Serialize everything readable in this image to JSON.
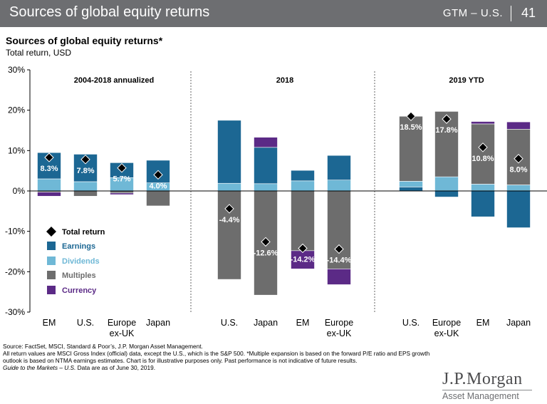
{
  "header": {
    "title": "Sources of global equity returns",
    "gtm": "GTM – U.S.",
    "page_number": "41"
  },
  "chart_title": "Sources of global equity returns*",
  "chart_subtitle": "Total return, USD",
  "chart_data": {
    "type": "bar",
    "stacked": true,
    "title": "Sources of global equity returns*",
    "ylabel": "Total return, USD",
    "ylim": [
      -30,
      30
    ],
    "yticks": [
      "30%",
      "20%",
      "10%",
      "0%",
      "-10%",
      "-20%",
      "-30%"
    ],
    "grid": false,
    "legend_position": "bottom-left",
    "legend": [
      {
        "key": "total",
        "label": "Total return",
        "color": "#000000"
      },
      {
        "key": "earnings",
        "label": "Earnings",
        "color": "#1c6793"
      },
      {
        "key": "dividends",
        "label": "Dividends",
        "color": "#6fb8d6"
      },
      {
        "key": "multiples",
        "label": "Multiples",
        "color": "#6d6d6d"
      },
      {
        "key": "currency",
        "label": "Currency",
        "color": "#5b2a86"
      }
    ],
    "panels": [
      {
        "title": "2004-2018 annualized",
        "categories": [
          {
            "label": [
              "EM"
            ],
            "total": 8.3,
            "total_label": "8.3%",
            "segments": [
              {
                "series": "dividends",
                "from": 0,
                "to": 3.0
              },
              {
                "series": "earnings",
                "from": 3.0,
                "to": 9.5
              },
              {
                "series": "multiples",
                "from": 0,
                "to": -0.3
              },
              {
                "series": "currency",
                "from": -0.3,
                "to": -1.3
              }
            ]
          },
          {
            "label": [
              "U.S."
            ],
            "total": 7.8,
            "total_label": "7.8%",
            "segments": [
              {
                "series": "dividends",
                "from": 0,
                "to": 2.3
              },
              {
                "series": "earnings",
                "from": 2.3,
                "to": 9.1
              },
              {
                "series": "multiples",
                "from": 0,
                "to": -1.3
              }
            ]
          },
          {
            "label": [
              "Europe",
              "ex-UK"
            ],
            "total": 5.7,
            "total_label": "5.7%",
            "segments": [
              {
                "series": "dividends",
                "from": 0,
                "to": 3.3
              },
              {
                "series": "earnings",
                "from": 3.3,
                "to": 7.0
              },
              {
                "series": "multiples",
                "from": 0,
                "to": -0.5
              },
              {
                "series": "currency",
                "from": -0.5,
                "to": -0.9
              }
            ]
          },
          {
            "label": [
              "Japan"
            ],
            "total": 4.0,
            "total_label": "4.0%",
            "segments": [
              {
                "series": "dividends",
                "from": 0,
                "to": 2.0
              },
              {
                "series": "earnings",
                "from": 2.0,
                "to": 7.6
              },
              {
                "series": "multiples",
                "from": 0,
                "to": -3.7
              }
            ]
          }
        ]
      },
      {
        "title": "2018",
        "categories": [
          {
            "label": [
              "U.S."
            ],
            "total": -4.4,
            "total_label": "-4.4%",
            "segments": [
              {
                "series": "dividends",
                "from": 0,
                "to": 1.9
              },
              {
                "series": "earnings",
                "from": 1.9,
                "to": 17.5
              },
              {
                "series": "multiples",
                "from": 0,
                "to": -21.9
              }
            ]
          },
          {
            "label": [
              "Japan"
            ],
            "total": -12.6,
            "total_label": "-12.6%",
            "segments": [
              {
                "series": "dividends",
                "from": 0,
                "to": 1.8
              },
              {
                "series": "earnings",
                "from": 1.8,
                "to": 10.8
              },
              {
                "series": "currency",
                "from": 10.8,
                "to": 13.3
              },
              {
                "series": "multiples",
                "from": 0,
                "to": -25.8
              }
            ]
          },
          {
            "label": [
              "EM"
            ],
            "total": -14.2,
            "total_label": "-14.2%",
            "segments": [
              {
                "series": "dividends",
                "from": 0,
                "to": 2.5
              },
              {
                "series": "earnings",
                "from": 2.5,
                "to": 5.1
              },
              {
                "series": "multiples",
                "from": 0,
                "to": -14.8
              },
              {
                "series": "currency",
                "from": -14.8,
                "to": -19.3
              }
            ]
          },
          {
            "label": [
              "Europe",
              "ex-UK"
            ],
            "total": -14.4,
            "total_label": "-14.4%",
            "segments": [
              {
                "series": "dividends",
                "from": 0,
                "to": 2.7
              },
              {
                "series": "earnings",
                "from": 2.7,
                "to": 8.8
              },
              {
                "series": "multiples",
                "from": 0,
                "to": -19.3
              },
              {
                "series": "currency",
                "from": -19.3,
                "to": -23.2
              }
            ]
          }
        ]
      },
      {
        "title": "2019 YTD",
        "categories": [
          {
            "label": [
              "U.S."
            ],
            "total": 18.5,
            "total_label": "18.5%",
            "segments": [
              {
                "series": "earnings",
                "from": 0,
                "to": 1.0
              },
              {
                "series": "dividends",
                "from": 1.0,
                "to": 2.4
              },
              {
                "series": "multiples",
                "from": 2.4,
                "to": 18.5
              }
            ]
          },
          {
            "label": [
              "Europe",
              "ex-UK"
            ],
            "total": 17.8,
            "total_label": "17.8%",
            "segments": [
              {
                "series": "dividends",
                "from": 0,
                "to": 3.5
              },
              {
                "series": "multiples",
                "from": 3.5,
                "to": 19.7
              },
              {
                "series": "earnings",
                "from": 0,
                "to": -1.5
              }
            ]
          },
          {
            "label": [
              "EM"
            ],
            "total": 10.8,
            "total_label": "10.8%",
            "segments": [
              {
                "series": "dividends",
                "from": 0,
                "to": 1.7
              },
              {
                "series": "multiples",
                "from": 1.7,
                "to": 16.6
              },
              {
                "series": "currency",
                "from": 16.6,
                "to": 17.2
              },
              {
                "series": "earnings",
                "from": 0,
                "to": -6.4
              }
            ]
          },
          {
            "label": [
              "Japan"
            ],
            "total": 8.0,
            "total_label": "8.0%",
            "segments": [
              {
                "series": "dividends",
                "from": 0,
                "to": 1.5
              },
              {
                "series": "multiples",
                "from": 1.5,
                "to": 15.3
              },
              {
                "series": "currency",
                "from": 15.3,
                "to": 17.1
              },
              {
                "series": "earnings",
                "from": 0,
                "to": -9.1
              }
            ]
          }
        ]
      }
    ]
  },
  "footer": {
    "source": "Source: FactSet, MSCI, Standard & Poor’s, J.P. Morgan Asset Management.",
    "note": "All return values are MSCI Gross Index (official) data, except the U.S., which is the S&P 500. *Multiple expansion is based on the forward P/E ratio and EPS growth outlook is based on NTMA earnings estimates. Chart is for illustrative purposes only. Past performance is not indicative of future results.",
    "guide_italic": "Guide to the Markets – U.S.",
    "guide_rest": " Data are as of June 30, 2019."
  },
  "logo": {
    "line1": "J.P.Morgan",
    "line2": "Asset Management"
  }
}
